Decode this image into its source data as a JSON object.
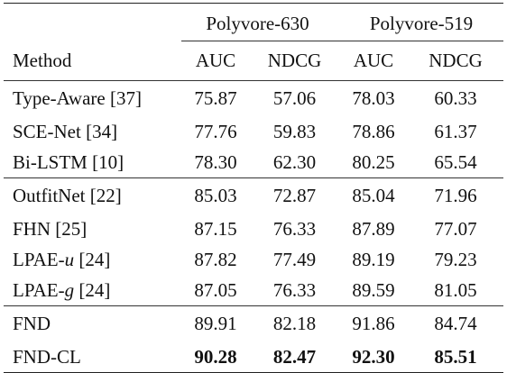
{
  "table": {
    "columns": {
      "method": "Method",
      "datasets": [
        {
          "name": "Polyvore-630",
          "metrics": [
            "AUC",
            "NDCG"
          ]
        },
        {
          "name": "Polyvore-519",
          "metrics": [
            "AUC",
            "NDCG"
          ]
        }
      ]
    },
    "groups": [
      {
        "rows": [
          {
            "method": "Type-Aware [37]",
            "auc630": "75.87",
            "ndcg630": "57.06",
            "auc519": "78.03",
            "ndcg519": "60.33"
          },
          {
            "method": "SCE-Net [34]",
            "auc630": "77.76",
            "ndcg630": "59.83",
            "auc519": "78.86",
            "ndcg519": "61.37"
          },
          {
            "method": "Bi-LSTM [10]",
            "auc630": "78.30",
            "ndcg630": "62.30",
            "auc519": "80.25",
            "ndcg519": "65.54"
          }
        ]
      },
      {
        "rows": [
          {
            "method": "OutfitNet [22]",
            "auc630": "85.03",
            "ndcg630": "72.87",
            "auc519": "85.04",
            "ndcg519": "71.96"
          },
          {
            "method": "FHN [25]",
            "auc630": "87.15",
            "ndcg630": "76.33",
            "auc519": "87.89",
            "ndcg519": "77.07"
          },
          {
            "method_prefix": "LPAE-",
            "method_italic": "u",
            "method_suffix": " [24]",
            "auc630": "87.82",
            "ndcg630": "77.49",
            "auc519": "89.19",
            "ndcg519": "79.23"
          },
          {
            "method_prefix": "LPAE-",
            "method_italic": "g",
            "method_suffix": " [24]",
            "auc630": "87.05",
            "ndcg630": "76.33",
            "auc519": "89.59",
            "ndcg519": "81.05"
          }
        ]
      },
      {
        "rows": [
          {
            "method": "FND",
            "auc630": "89.91",
            "ndcg630": "82.18",
            "auc519": "91.86",
            "ndcg519": "84.74"
          },
          {
            "method": "FND-CL",
            "auc630": "90.28",
            "ndcg630": "82.47",
            "auc519": "92.30",
            "ndcg519": "85.51",
            "bold": true
          }
        ]
      }
    ]
  }
}
